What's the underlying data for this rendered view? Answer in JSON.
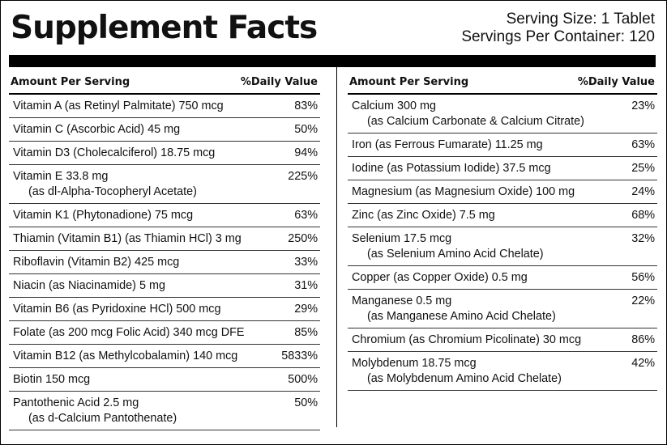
{
  "title": "Supplement Facts",
  "serving_size": "Serving Size: 1 Tablet",
  "servings_per_container": "Servings Per Container: 120",
  "header": {
    "amount": "Amount Per Serving",
    "daily_value": "%Daily Value"
  },
  "left_nutrients": [
    {
      "name": "Vitamin A (as Retinyl Palmitate) 750 mcg",
      "dv": "83%"
    },
    {
      "name": "Vitamin C (Ascorbic Acid) 45 mg",
      "dv": "50%"
    },
    {
      "name": "Vitamin D3 (Cholecalciferol) 18.75 mcg",
      "dv": "94%"
    },
    {
      "name": "Vitamin E 33.8 mg",
      "detail": "(as dl-Alpha-Tocopheryl Acetate)",
      "dv": "225%"
    },
    {
      "name": "Vitamin K1 (Phytonadione) 75 mcg",
      "dv": "63%"
    },
    {
      "name": "Thiamin (Vitamin B1) (as Thiamin HCl) 3 mg",
      "dv": "250%"
    },
    {
      "name": "Riboflavin (Vitamin B2) 425 mcg",
      "dv": "33%"
    },
    {
      "name": "Niacin (as Niacinamide) 5 mg",
      "dv": "31%"
    },
    {
      "name": "Vitamin B6 (as Pyridoxine HCl) 500 mcg",
      "dv": "29%"
    },
    {
      "name": "Folate (as 200 mcg Folic Acid) 340 mcg DFE",
      "dv": "85%"
    },
    {
      "name": "Vitamin B12 (as Methylcobalamin) 140 mcg",
      "dv": "5833%"
    },
    {
      "name": "Biotin 150 mcg",
      "dv": "500%"
    },
    {
      "name": "Pantothenic Acid 2.5 mg",
      "detail": "(as d-Calcium Pantothenate)",
      "dv": "50%"
    }
  ],
  "right_nutrients": [
    {
      "name": "Calcium 300 mg",
      "detail": "(as Calcium Carbonate & Calcium Citrate)",
      "dv": "23%"
    },
    {
      "name": "Iron (as Ferrous Fumarate) 11.25 mg",
      "dv": "63%"
    },
    {
      "name": "Iodine (as Potassium Iodide) 37.5 mcg",
      "dv": "25%"
    },
    {
      "name": "Magnesium (as Magnesium Oxide) 100 mg",
      "dv": "24%"
    },
    {
      "name": "Zinc (as Zinc Oxide)  7.5 mg",
      "dv": "68%"
    },
    {
      "name": "Selenium 17.5 mcg",
      "detail": "(as Selenium Amino Acid Chelate)",
      "dv": "32%"
    },
    {
      "name": "Copper (as Copper Oxide) 0.5 mg",
      "dv": "56%"
    },
    {
      "name": "Manganese 0.5 mg",
      "detail": "(as Manganese Amino Acid Chelate)",
      "dv": "22%"
    },
    {
      "name": "Chromium (as Chromium Picolinate) 30 mcg",
      "dv": "86%"
    },
    {
      "name": "Molybdenum 18.75 mcg",
      "detail": "(as Molybdenum Amino Acid Chelate)",
      "dv": "42%"
    }
  ]
}
